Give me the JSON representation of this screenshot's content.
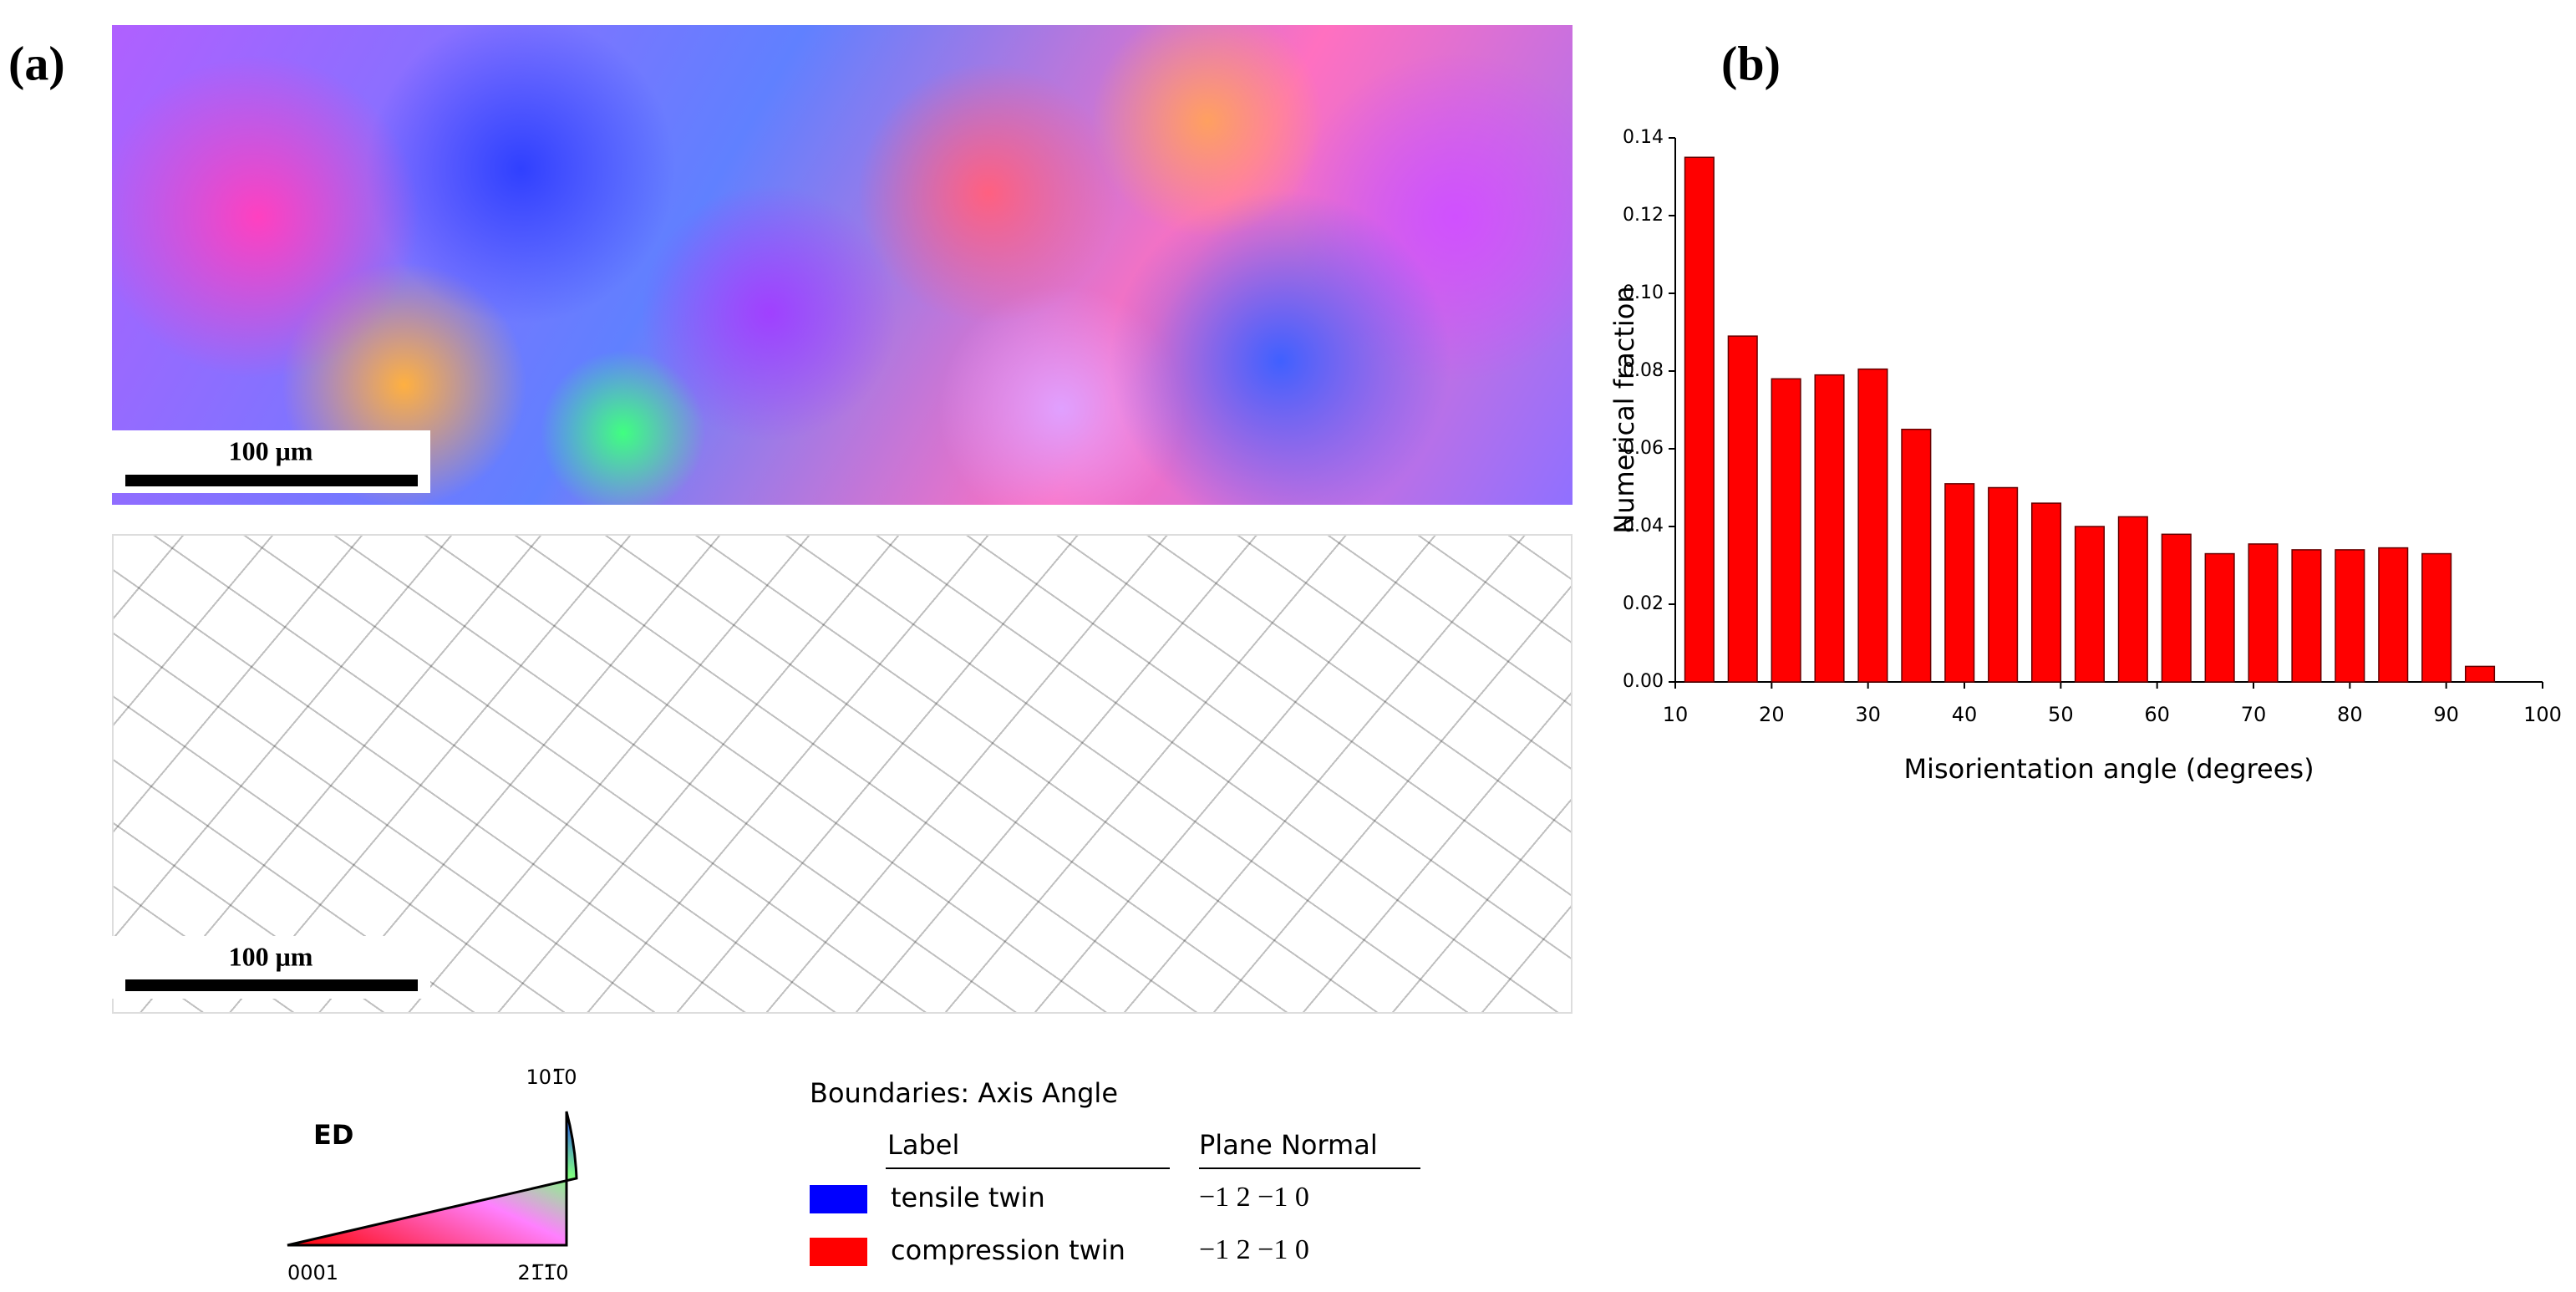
{
  "figure": {
    "panel_a": "(a)",
    "panel_b": "(b)",
    "scale_bars": [
      "100 μm",
      "100 μm"
    ],
    "ipf_legend": {
      "direction": "ED",
      "corners": [
        "0001",
        "101̅0",
        "21̅1̅0"
      ]
    },
    "boundaries_legend": {
      "title": "Boundaries: Axis Angle",
      "headers": [
        "Label",
        "Plane Normal"
      ],
      "rows": [
        {
          "label": "tensile twin",
          "color": "#0000ff",
          "plane_normal": "−1 2 −1 0"
        },
        {
          "label": "compression twin",
          "color": "#ff0000",
          "plane_normal": "−1 2 −1 0"
        }
      ]
    }
  },
  "chart_data": {
    "type": "bar",
    "x": [
      12.5,
      17,
      21.5,
      26,
      30.5,
      35,
      39.5,
      44,
      48.5,
      53,
      57.5,
      62,
      66.5,
      71,
      75.5,
      80,
      84.5,
      89,
      93.5
    ],
    "values": [
      0.135,
      0.089,
      0.078,
      0.079,
      0.0805,
      0.065,
      0.051,
      0.05,
      0.046,
      0.04,
      0.0425,
      0.038,
      0.033,
      0.0355,
      0.034,
      0.034,
      0.0345,
      0.033,
      0.004
    ],
    "color": "#ff0000",
    "xlabel": "Misorientation angle (degrees)",
    "ylabel": "Numerical fraction",
    "xlim": [
      10,
      100
    ],
    "ylim": [
      0,
      0.14
    ],
    "xticks": [
      10,
      20,
      30,
      40,
      50,
      60,
      70,
      80,
      90,
      100
    ],
    "yticks": [
      {
        "value": 0,
        "label": "0.00"
      },
      {
        "value": 0.02,
        "label": "0.02"
      },
      {
        "value": 0.04,
        "label": "0.04"
      },
      {
        "value": 0.06,
        "label": "0.06"
      },
      {
        "value": 0.08,
        "label": "0.08"
      },
      {
        "value": 0.1,
        "label": "0.10"
      },
      {
        "value": 0.12,
        "label": "0.12"
      },
      {
        "value": 0.14,
        "label": "0.14"
      }
    ]
  }
}
